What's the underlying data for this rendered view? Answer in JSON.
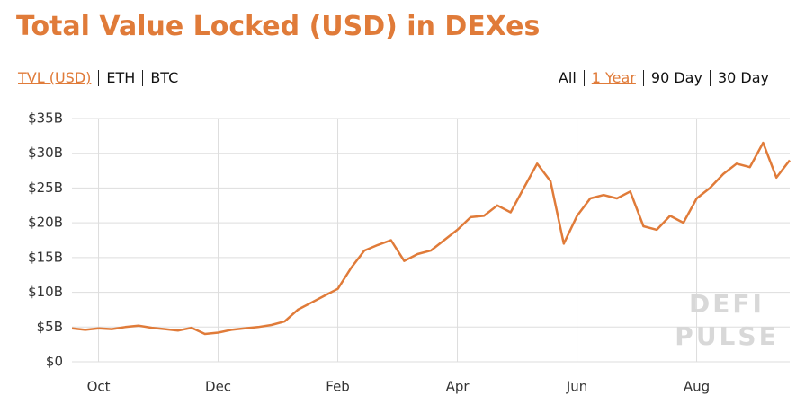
{
  "chart_data": {
    "type": "line",
    "title": "Total Value Locked (USD) in DEXes",
    "units_tabs": [
      {
        "label": "TVL (USD)",
        "active": true
      },
      {
        "label": "ETH",
        "active": false
      },
      {
        "label": "BTC",
        "active": false
      }
    ],
    "range_tabs": [
      {
        "label": "All",
        "active": false
      },
      {
        "label": "1 Year",
        "active": true
      },
      {
        "label": "90 Day",
        "active": false
      },
      {
        "label": "30 Day",
        "active": false
      }
    ],
    "watermark": [
      "DEFI",
      "PULSE"
    ],
    "color": "#e07b39",
    "grid": true,
    "categories": [
      null,
      null,
      "Oct",
      null,
      null,
      null,
      null,
      null,
      null,
      null,
      null,
      "Dec",
      null,
      null,
      null,
      null,
      null,
      null,
      null,
      null,
      "Feb",
      null,
      null,
      null,
      null,
      null,
      null,
      null,
      null,
      "Apr",
      null,
      null,
      null,
      null,
      null,
      null,
      null,
      null,
      "Jun",
      null,
      null,
      null,
      null,
      null,
      null,
      null,
      null,
      "Aug",
      null,
      null,
      null,
      null,
      null,
      null,
      null
    ],
    "values": [
      4.8,
      4.6,
      4.8,
      4.7,
      5.0,
      5.2,
      4.9,
      4.7,
      4.5,
      4.9,
      4.0,
      4.2,
      4.6,
      4.8,
      5.0,
      5.3,
      5.8,
      7.5,
      8.5,
      9.5,
      10.5,
      13.5,
      16.0,
      16.8,
      17.5,
      14.5,
      15.5,
      16.0,
      17.5,
      19.0,
      20.8,
      21.0,
      22.5,
      21.5,
      25.0,
      28.5,
      26.0,
      17.0,
      21.0,
      23.5,
      24.0,
      23.5,
      24.5,
      19.5,
      19.0,
      21.0,
      20.0,
      23.5,
      25.0,
      27.0,
      28.5,
      28.0,
      31.5,
      26.5,
      29.0
    ],
    "ylim": [
      0,
      35
    ],
    "yticks": [
      {
        "value": 0,
        "label": "$0"
      },
      {
        "value": 5,
        "label": "$5B"
      },
      {
        "value": 10,
        "label": "$10B"
      },
      {
        "value": 15,
        "label": "$15B"
      },
      {
        "value": 20,
        "label": "$20B"
      },
      {
        "value": 25,
        "label": "$25B"
      },
      {
        "value": 30,
        "label": "$30B"
      },
      {
        "value": 35,
        "label": "$35B"
      }
    ]
  }
}
